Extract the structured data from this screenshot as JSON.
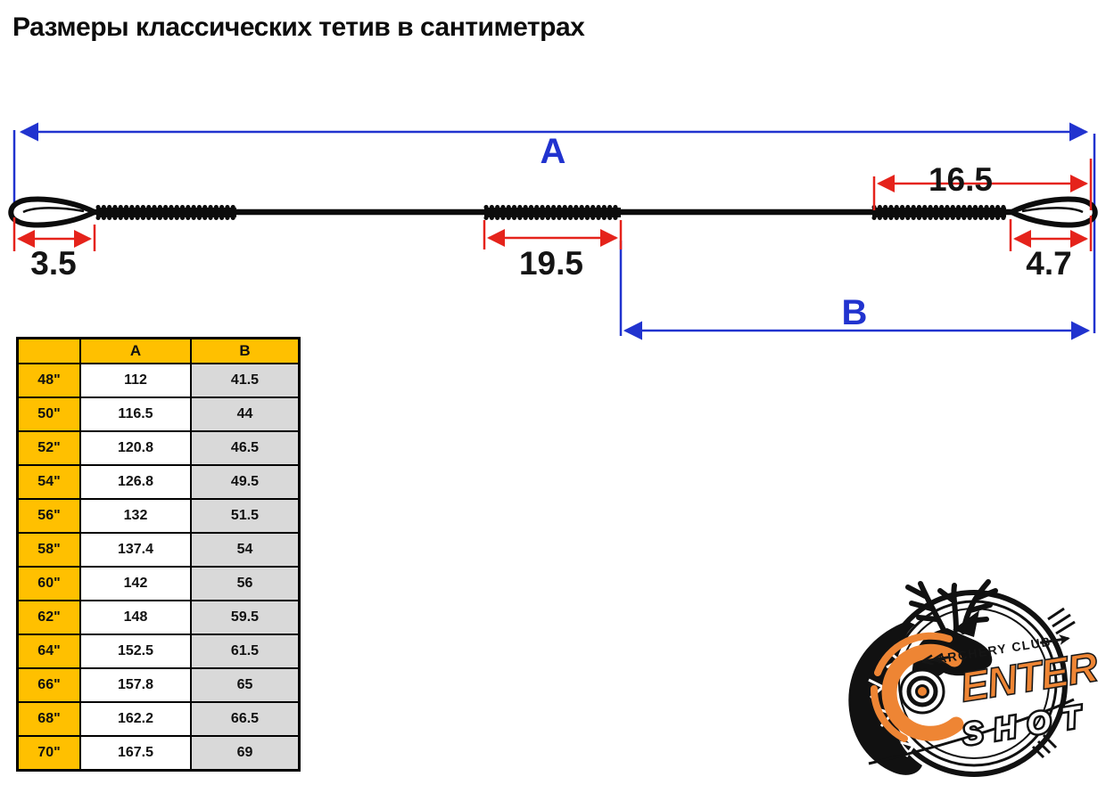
{
  "title": "Размеры классических тетив в сантиметрах",
  "diagram": {
    "label_total_length": "A",
    "label_loop_to_center": "B",
    "dim_left_loop": "3.5",
    "dim_center_serving": "19.5",
    "dim_right_serving": "16.5",
    "dim_right_loop": "4.7",
    "colors": {
      "dimension_blue": "#2133cf",
      "dimension_red": "#e5231b",
      "string_black": "#0c0c0c"
    }
  },
  "table": {
    "headers": [
      "",
      "A",
      "B"
    ],
    "rows": [
      {
        "size": "48\"",
        "a": "112",
        "b": "41.5"
      },
      {
        "size": "50\"",
        "a": "116.5",
        "b": "44"
      },
      {
        "size": "52\"",
        "a": "120.8",
        "b": "46.5"
      },
      {
        "size": "54\"",
        "a": "126.8",
        "b": "49.5"
      },
      {
        "size": "56\"",
        "a": "132",
        "b": "51.5"
      },
      {
        "size": "58\"",
        "a": "137.4",
        "b": "54"
      },
      {
        "size": "60\"",
        "a": "142",
        "b": "56"
      },
      {
        "size": "62\"",
        "a": "148",
        "b": "59.5"
      },
      {
        "size": "64\"",
        "a": "152.5",
        "b": "61.5"
      },
      {
        "size": "66\"",
        "a": "157.8",
        "b": "65"
      },
      {
        "size": "68\"",
        "a": "162.2",
        "b": "66.5"
      },
      {
        "size": "70\"",
        "a": "167.5",
        "b": "69"
      }
    ],
    "colors": {
      "header_bg": "#FFC000",
      "size_col_bg": "#FFC000",
      "a_col_bg": "#FFFFFF",
      "b_col_bg": "#D9D9D9"
    }
  },
  "logo": {
    "club_line": "ARCHERY CLUB",
    "name_initial": "C",
    "name_main": "ENTER",
    "name_secondary": "SHOT",
    "orange": "#ee8534"
  }
}
